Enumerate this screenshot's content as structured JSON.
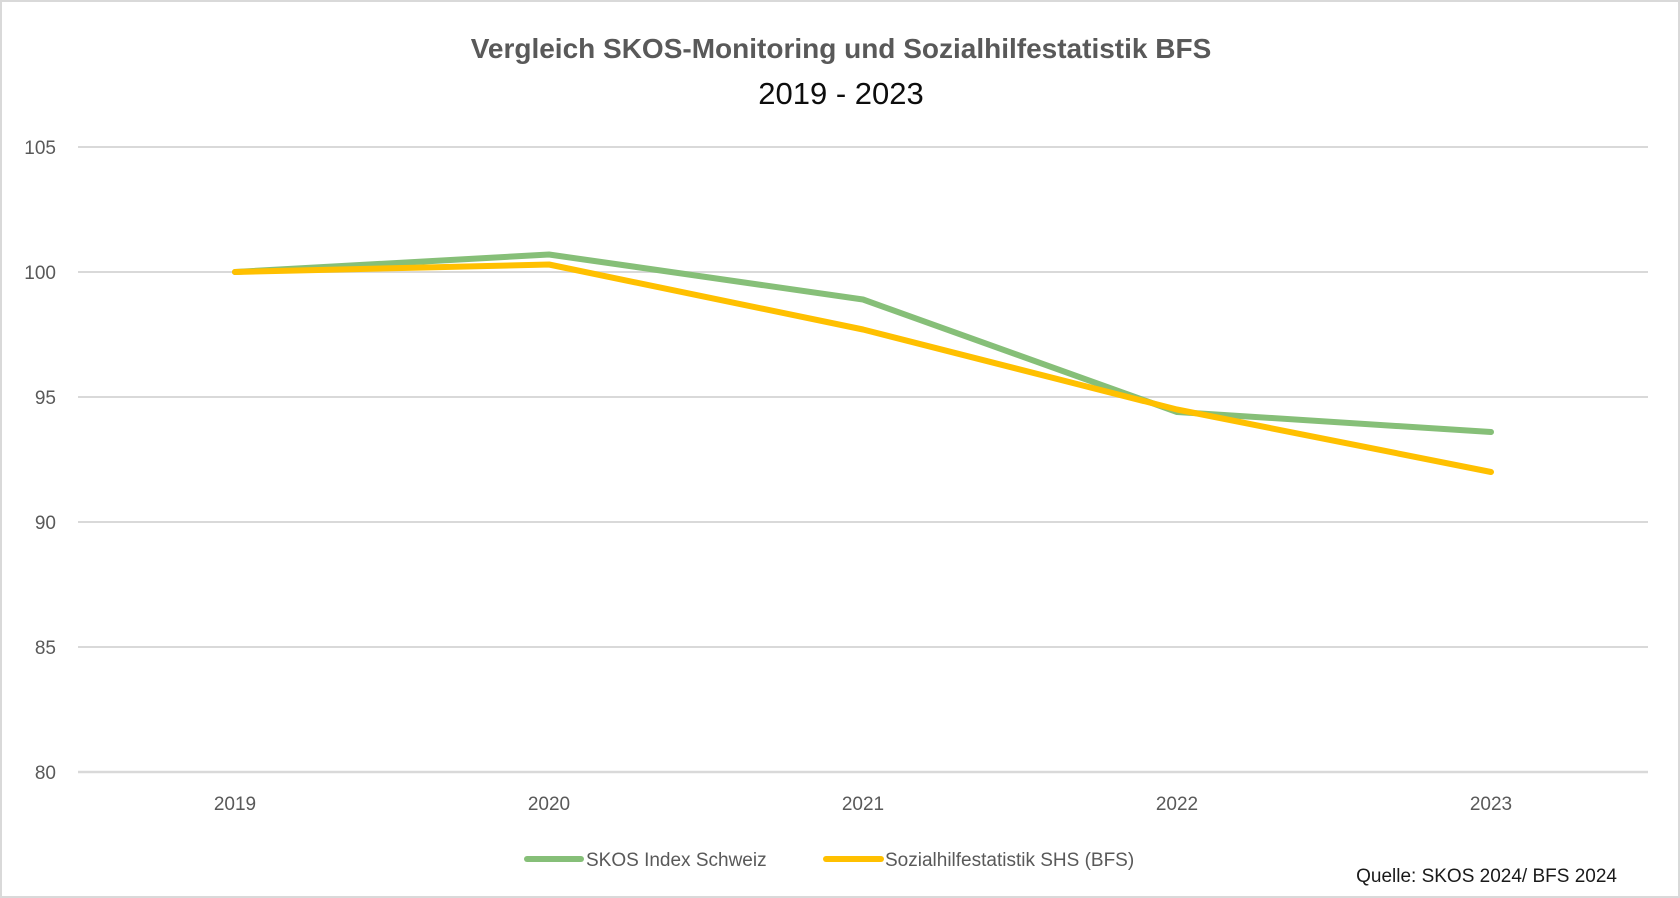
{
  "chart_data": {
    "type": "line",
    "title": "Vergleich SKOS-Monitoring und Sozialhilfestatistik BFS",
    "subtitle": "2019 - 2023",
    "xlabel": "",
    "ylabel": "",
    "categories": [
      "2019",
      "2020",
      "2021",
      "2022",
      "2023"
    ],
    "ylim": [
      80,
      105
    ],
    "yticks": [
      80,
      85,
      90,
      95,
      100,
      105
    ],
    "ytick_labels": [
      "80",
      "85",
      "90",
      "95",
      "100",
      "105"
    ],
    "grid": true,
    "legend_position": "bottom",
    "series": [
      {
        "name": "SKOS Index Schweiz",
        "color": "#86BF78",
        "values": [
          100.0,
          100.7,
          98.9,
          94.4,
          93.6
        ]
      },
      {
        "name": "Sozialhilfestatistik SHS (BFS)",
        "color": "#FFC000",
        "values": [
          100.0,
          100.3,
          97.7,
          94.5,
          92.0
        ]
      }
    ],
    "annotations": [
      "Quelle: SKOS 2024/ BFS 2024"
    ]
  },
  "source_note": "Quelle: SKOS 2024/ BFS 2024"
}
